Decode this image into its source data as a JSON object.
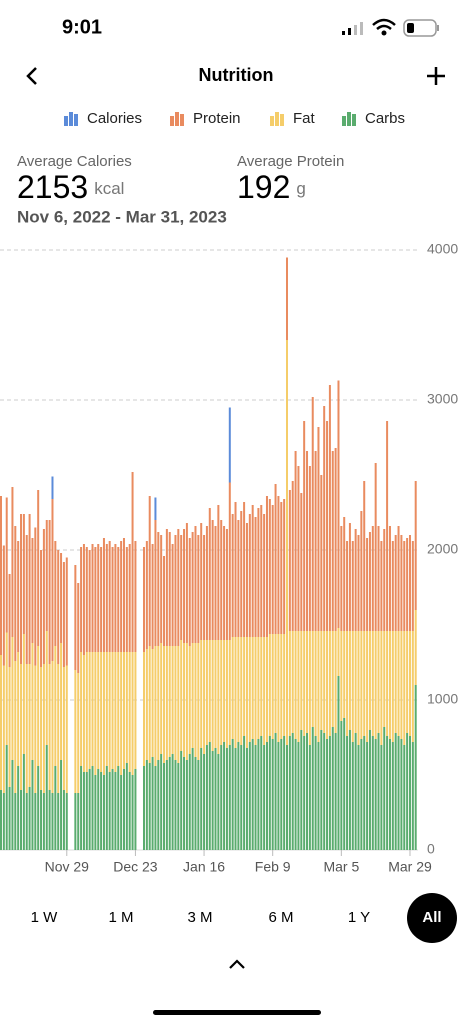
{
  "status_bar": {
    "time": "9:01"
  },
  "header": {
    "title": "Nutrition"
  },
  "stats": [
    {
      "label": "Average Calories",
      "value": 2153,
      "unit": "kcal"
    },
    {
      "label": "Average Protein",
      "value": 192,
      "unit": "g"
    }
  ],
  "date_range": "Nov 6, 2022 - Mar 31, 2023",
  "chart_data": {
    "type": "stacked_bar",
    "categories": [
      null,
      null,
      null,
      null,
      null,
      null,
      null,
      null,
      null,
      null,
      null,
      null,
      null,
      null,
      null,
      null,
      null,
      null,
      null,
      null,
      null,
      null,
      null,
      "Nov 29",
      null,
      null,
      null,
      null,
      null,
      null,
      null,
      null,
      null,
      null,
      null,
      null,
      null,
      null,
      null,
      null,
      null,
      null,
      null,
      null,
      null,
      null,
      null,
      "Dec 23",
      null,
      null,
      null,
      null,
      null,
      null,
      null,
      null,
      null,
      null,
      null,
      null,
      null,
      null,
      null,
      null,
      null,
      null,
      null,
      null,
      null,
      null,
      null,
      "Jan 16",
      null,
      null,
      null,
      null,
      null,
      null,
      null,
      null,
      null,
      null,
      null,
      null,
      null,
      null,
      null,
      null,
      null,
      null,
      null,
      null,
      null,
      null,
      null,
      "Feb 9",
      null,
      null,
      null,
      null,
      null,
      null,
      null,
      null,
      null,
      null,
      null,
      null,
      null,
      null,
      null,
      null,
      null,
      null,
      null,
      null,
      null,
      null,
      null,
      "Mar 5",
      null,
      null,
      null,
      null,
      null,
      null,
      null,
      null,
      null,
      null,
      null,
      null,
      null,
      null,
      null,
      null,
      null,
      null,
      null,
      null,
      null,
      null,
      null,
      "Mar 29",
      null,
      null
    ],
    "series": [
      {
        "name": "Calories",
        "color": "#5b8bd9",
        "values": [
          0,
          0,
          0,
          0,
          0,
          0,
          0,
          0,
          0,
          0,
          0,
          0,
          0,
          0,
          0,
          0,
          0,
          0,
          150,
          0,
          0,
          0,
          0,
          0,
          null,
          null,
          0,
          0,
          0,
          0,
          0,
          0,
          0,
          0,
          0,
          0,
          0,
          0,
          0,
          0,
          0,
          0,
          0,
          0,
          0,
          0,
          0,
          0,
          null,
          null,
          0,
          0,
          0,
          0,
          150,
          0,
          0,
          0,
          0,
          0,
          0,
          0,
          0,
          0,
          0,
          0,
          0,
          0,
          0,
          0,
          0,
          0,
          0,
          0,
          0,
          0,
          0,
          0,
          0,
          0,
          500,
          0,
          0,
          0,
          0,
          0,
          0,
          0,
          0,
          0,
          0,
          0,
          0,
          0,
          0,
          0,
          0,
          0,
          0,
          0,
          0,
          0,
          0,
          0,
          0,
          0,
          0,
          0,
          0,
          0,
          0,
          0,
          0,
          0,
          0,
          0,
          0,
          0,
          0,
          0,
          0,
          0,
          0,
          0,
          0,
          0,
          0,
          0,
          0,
          0,
          0,
          0,
          0,
          0,
          0,
          0,
          0,
          0,
          0,
          0,
          0,
          0,
          0,
          0,
          0,
          0
        ]
      },
      {
        "name": "Protein",
        "color": "#e98b5f",
        "values": [
          1060,
          800,
          900,
          620,
          1000,
          900,
          740,
          1000,
          800,
          860,
          1000,
          700,
          920,
          1040,
          780,
          900,
          740,
          960,
          1080,
          700,
          760,
          600,
          700,
          720,
          null,
          null,
          700,
          600,
          700,
          740,
          700,
          680,
          720,
          700,
          720,
          700,
          760,
          720,
          740,
          700,
          720,
          700,
          740,
          760,
          700,
          720,
          1200,
          740,
          null,
          null,
          700,
          720,
          1000,
          700,
          840,
          760,
          720,
          600,
          780,
          760,
          680,
          740,
          780,
          700,
          760,
          800,
          720,
          740,
          780,
          720,
          780,
          700,
          760,
          880,
          800,
          760,
          900,
          800,
          760,
          740,
          1050,
          820,
          900,
          780,
          840,
          900,
          760,
          820,
          880,
          800,
          860,
          880,
          820,
          940,
          900,
          860,
          1000,
          920,
          880,
          900,
          550,
          940,
          1000,
          1200,
          1100,
          920,
          1400,
          1200,
          1100,
          1560,
          1200,
          1360,
          1040,
          1500,
          1400,
          1640,
          1200,
          1220,
          1650,
          700,
          760,
          600,
          720,
          600,
          680,
          640,
          800,
          1000,
          620,
          660,
          700,
          1120,
          700,
          600,
          680,
          1400,
          700,
          600,
          640,
          700,
          640,
          600,
          620,
          640,
          600,
          860
        ]
      },
      {
        "name": "Fat",
        "color": "#f5cd6a",
        "values": [
          900,
          850,
          750,
          800,
          820,
          880,
          760,
          840,
          800,
          860,
          820,
          780,
          850,
          800,
          820,
          860,
          760,
          840,
          880,
          800,
          860,
          780,
          820,
          850,
          null,
          null,
          820,
          800,
          760,
          780,
          800,
          780,
          760,
          820,
          780,
          800,
          820,
          760,
          800,
          780,
          800,
          760,
          820,
          780,
          740,
          800,
          820,
          780,
          null,
          null,
          760,
          740,
          780,
          720,
          800,
          760,
          740,
          780,
          760,
          740,
          720,
          760,
          780,
          740,
          760,
          780,
          720,
          700,
          760,
          780,
          720,
          760,
          700,
          680,
          740,
          720,
          760,
          700,
          680,
          720,
          700,
          680,
          740,
          700,
          720,
          660,
          740,
          700,
          680,
          720,
          680,
          660,
          720,
          700,
          680,
          700,
          660,
          720,
          700,
          680,
          2700,
          700,
          680,
          720,
          740,
          660,
          700,
          680,
          760,
          640,
          700,
          740,
          660,
          680,
          720,
          700,
          640,
          680,
          320,
          600,
          580,
          700,
          660,
          740,
          680,
          760,
          720,
          700,
          740,
          660,
          700,
          720,
          680,
          760,
          640,
          700,
          720,
          740,
          680,
          700,
          720,
          760,
          680,
          700,
          740,
          500
        ]
      },
      {
        "name": "Carbs",
        "color": "#5aac6e",
        "values": [
          400,
          380,
          700,
          420,
          600,
          380,
          560,
          400,
          640,
          380,
          420,
          600,
          380,
          560,
          400,
          380,
          700,
          400,
          380,
          560,
          380,
          600,
          400,
          380,
          null,
          null,
          380,
          380,
          560,
          520,
          520,
          540,
          560,
          500,
          540,
          520,
          500,
          560,
          520,
          540,
          520,
          560,
          500,
          540,
          580,
          520,
          500,
          540,
          null,
          null,
          560,
          600,
          580,
          620,
          560,
          600,
          640,
          580,
          600,
          620,
          640,
          600,
          580,
          660,
          620,
          600,
          640,
          680,
          620,
          600,
          680,
          640,
          700,
          720,
          660,
          680,
          640,
          700,
          720,
          680,
          700,
          740,
          680,
          720,
          700,
          760,
          680,
          720,
          740,
          700,
          740,
          760,
          700,
          720,
          760,
          740,
          780,
          720,
          740,
          760,
          700,
          760,
          780,
          740,
          720,
          800,
          760,
          780,
          700,
          820,
          760,
          720,
          800,
          780,
          740,
          760,
          820,
          780,
          1160,
          860,
          880,
          760,
          800,
          720,
          780,
          700,
          740,
          760,
          720,
          800,
          760,
          740,
          780,
          700,
          820,
          760,
          740,
          720,
          780,
          760,
          740,
          700,
          780,
          760,
          720,
          1100
        ]
      }
    ],
    "ylim": [
      0,
      4000
    ],
    "yticks": [
      0,
      1000,
      2000,
      3000,
      4000
    ],
    "grid": true
  },
  "range_buttons": [
    "1 W",
    "1 M",
    "3 M",
    "6 M",
    "1 Y",
    "All"
  ],
  "selected_range": 5
}
